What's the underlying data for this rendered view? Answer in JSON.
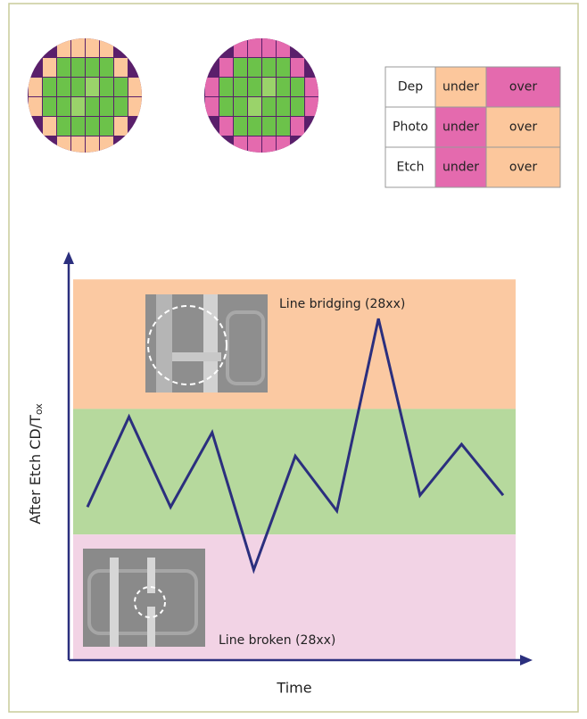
{
  "table": {
    "rows": [
      [
        "Dep",
        "under",
        "over"
      ],
      [
        "Photo",
        "under",
        "over"
      ],
      [
        "Etch",
        "under",
        "over"
      ]
    ]
  },
  "chart_data": {
    "type": "line",
    "x_label": "Time",
    "y_label": "After Etch CD/T",
    "y_label_subscript": "ox",
    "annotations": [
      "Line bridging (28xx)",
      "Line broken (28xx)"
    ],
    "categories": [
      null,
      null,
      null,
      null,
      null,
      null,
      null,
      null,
      null,
      null,
      null
    ],
    "values": [
      39,
      62,
      39,
      58,
      23,
      52,
      38,
      87,
      42,
      55,
      42
    ],
    "color": "#2b2f7e",
    "ylim": [
      0,
      100
    ],
    "bands": [
      {
        "from": 0,
        "to": 32,
        "color": "#f2d3e5"
      },
      {
        "from": 32,
        "to": 64,
        "color": "#b6d99d"
      },
      {
        "from": 64,
        "to": 97,
        "color": "#fbc9a2"
      }
    ]
  }
}
